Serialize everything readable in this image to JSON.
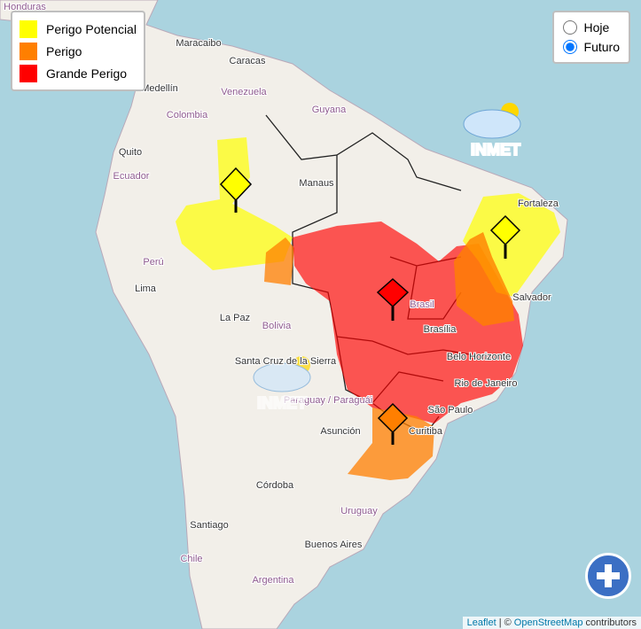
{
  "legend": [
    {
      "label": "Perigo Potencial",
      "color": "#ffff00"
    },
    {
      "label": "Perigo",
      "color": "#ff7f00"
    },
    {
      "label": "Grande Perigo",
      "color": "#ff0000"
    }
  ],
  "view_options": {
    "options": [
      "Hoje",
      "Futuro"
    ],
    "selected": 1
  },
  "map_labels": [
    "Honduras",
    "Maracaibo",
    "Caracas",
    "Medellín",
    "Venezuela",
    "Colombia",
    "Guyana",
    "Quito",
    "Ecuador",
    "Manaus",
    "Fortaleza",
    "Perú",
    "Lima",
    "La Paz",
    "Bolivia",
    "Brasil",
    "Brasília",
    "Salvador",
    "Santa Cruz de la Sierra",
    "Belo Horizonte",
    "Rio de Janeiro",
    "Paraguay / Paraguái",
    "São Paulo",
    "Asunción",
    "Curitiba",
    "Córdoba",
    "Uruguay",
    "Santiago",
    "Buenos Aires",
    "Chile",
    "Argentina"
  ],
  "watermark": "INMET",
  "attribution": {
    "leaflet": "Leaflet",
    "separator": "| ©",
    "osm": "OpenStreetMap",
    "suffix": "contributors"
  }
}
